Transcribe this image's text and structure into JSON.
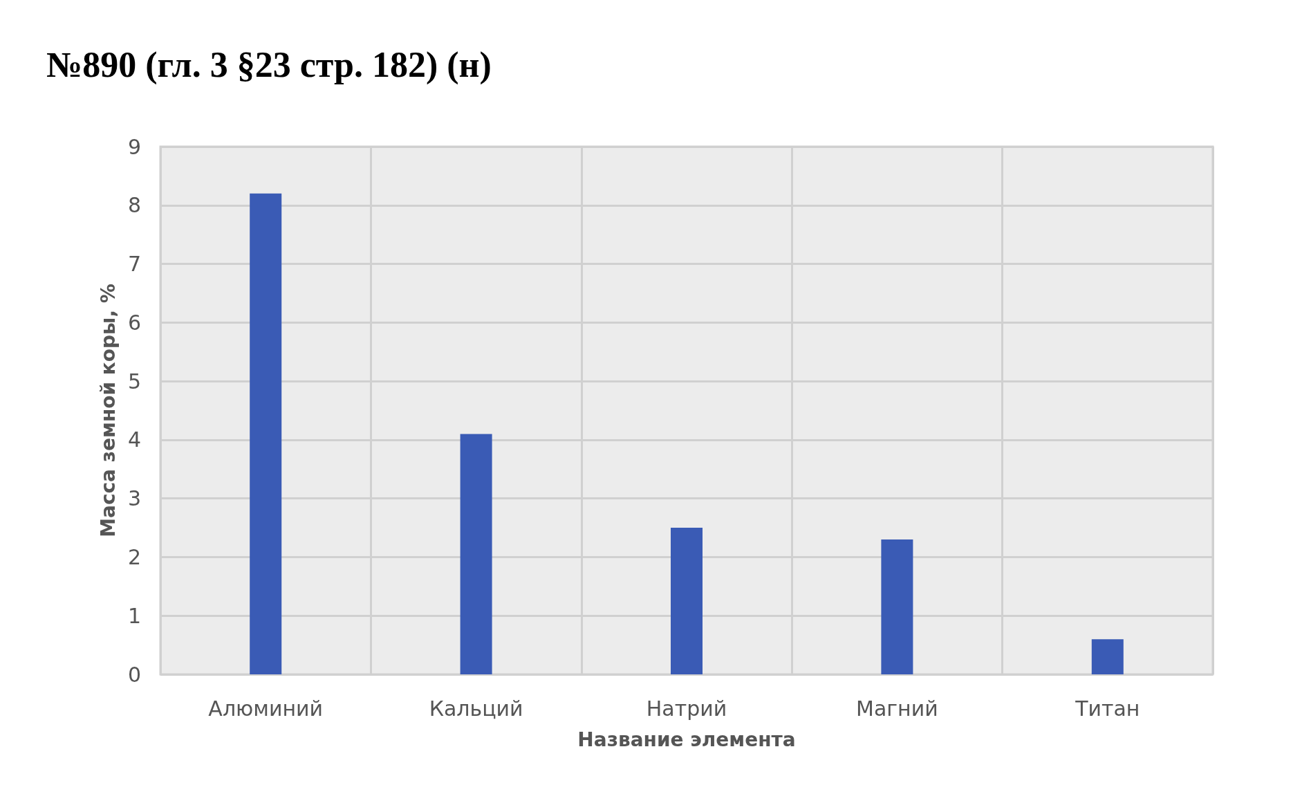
{
  "chart_data": {
    "type": "bar",
    "title": "№890 (гл. 3 §23 стр. 182) (н)",
    "xlabel": "Название элемента",
    "ylabel": "Масса земной коры, %",
    "categories": [
      "Алюминий",
      "Кальций",
      "Натрий",
      "Магний",
      "Титан"
    ],
    "values": [
      8.2,
      4.1,
      2.5,
      2.3,
      0.6
    ],
    "color": "#3a5bb5",
    "ylim": [
      0,
      9
    ],
    "yticks": [
      0,
      1,
      2,
      3,
      4,
      5,
      6,
      7,
      8,
      9
    ],
    "grid": true
  }
}
